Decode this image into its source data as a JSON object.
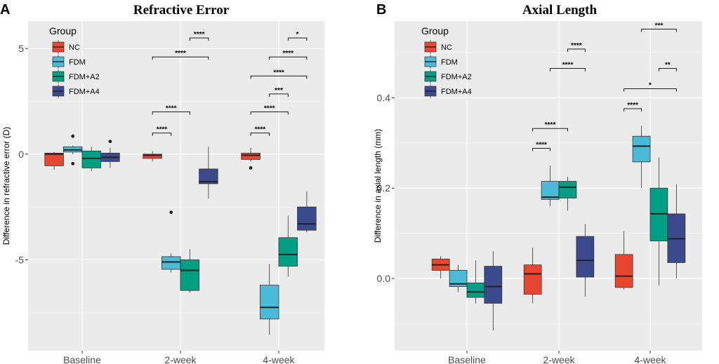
{
  "figure": {
    "letters": [
      "A",
      "B"
    ]
  },
  "legend": {
    "title": "Group"
  },
  "chart_data": [
    {
      "type": "box",
      "title": "Refractive Error",
      "ylabel": "Difference in refractive error (D)",
      "ylim": [
        -9.3,
        6.3
      ],
      "yticks": [
        -5,
        0,
        5
      ],
      "ytick_labels": [
        "-5",
        "0",
        "5"
      ],
      "categories": [
        "Baseline",
        "2-week",
        "4-week"
      ],
      "groups": [
        {
          "name": "NC",
          "color": "#E8462F"
        },
        {
          "name": "FDM",
          "color": "#4BBAD6"
        },
        {
          "name": "FDM+A2",
          "color": "#009F83"
        },
        {
          "name": "FDM+A4",
          "color": "#3A4A8C"
        }
      ],
      "boxes": [
        {
          "category": "Baseline",
          "group": "NC",
          "lower_whisker": -0.75,
          "q1": -0.55,
          "median": 0.0,
          "q3": 0.05,
          "upper_whisker": 0.1,
          "outliers": []
        },
        {
          "category": "Baseline",
          "group": "FDM",
          "lower_whisker": 0.0,
          "q1": 0.1,
          "median": 0.2,
          "q3": 0.35,
          "upper_whisker": 0.4,
          "outliers": [
            0.85,
            -0.45
          ]
        },
        {
          "category": "Baseline",
          "group": "FDM+A2",
          "lower_whisker": -0.8,
          "q1": -0.65,
          "median": -0.2,
          "q3": 0.15,
          "upper_whisker": 0.35,
          "outliers": []
        },
        {
          "category": "Baseline",
          "group": "FDM+A4",
          "lower_whisker": -0.65,
          "q1": -0.35,
          "median": -0.15,
          "q3": 0.05,
          "upper_whisker": 0.3,
          "outliers": [
            0.6
          ]
        },
        {
          "category": "2-week",
          "group": "NC",
          "lower_whisker": -0.35,
          "q1": -0.2,
          "median": -0.05,
          "q3": 0.0,
          "upper_whisker": 0.15,
          "outliers": []
        },
        {
          "category": "2-week",
          "group": "FDM",
          "lower_whisker": -5.6,
          "q1": -5.45,
          "median": -5.1,
          "q3": -4.85,
          "upper_whisker": -4.7,
          "outliers": [
            -2.75
          ]
        },
        {
          "category": "2-week",
          "group": "FDM+A2",
          "lower_whisker": -6.55,
          "q1": -6.45,
          "median": -5.5,
          "q3": -5.0,
          "upper_whisker": -4.5,
          "outliers": []
        },
        {
          "category": "2-week",
          "group": "FDM+A4",
          "lower_whisker": -2.1,
          "q1": -1.4,
          "median": -1.3,
          "q3": -0.7,
          "upper_whisker": 0.35,
          "outliers": []
        },
        {
          "category": "4-week",
          "group": "NC",
          "lower_whisker": -0.35,
          "q1": -0.25,
          "median": -0.05,
          "q3": 0.05,
          "upper_whisker": 0.3,
          "outliers": [
            -0.65
          ]
        },
        {
          "category": "4-week",
          "group": "FDM",
          "lower_whisker": -8.55,
          "q1": -7.8,
          "median": -7.25,
          "q3": -6.2,
          "upper_whisker": -5.2,
          "outliers": []
        },
        {
          "category": "4-week",
          "group": "FDM+A2",
          "lower_whisker": -5.8,
          "q1": -5.3,
          "median": -4.75,
          "q3": -3.95,
          "upper_whisker": -2.9,
          "outliers": []
        },
        {
          "category": "4-week",
          "group": "FDM+A4",
          "lower_whisker": -3.7,
          "q1": -3.6,
          "median": -3.3,
          "q3": -2.5,
          "upper_whisker": -1.75,
          "outliers": []
        }
      ],
      "significance": [
        {
          "category": "2-week",
          "from": "FDM+A2",
          "to": "FDM+A4",
          "y": 5.5,
          "label": "****"
        },
        {
          "category": "2-week",
          "from": "NC",
          "to": "FDM+A4",
          "y": 4.6,
          "label": "****"
        },
        {
          "category": "2-week",
          "from": "NC",
          "to": "FDM+A2",
          "y": 2.0,
          "label": "****"
        },
        {
          "category": "2-week",
          "from": "NC",
          "to": "FDM",
          "y": 1.0,
          "label": "****"
        },
        {
          "category": "4-week",
          "from": "FDM+A2",
          "to": "FDM+A4",
          "y": 5.5,
          "label": "*"
        },
        {
          "category": "4-week",
          "from": "FDM",
          "to": "FDM+A4",
          "y": 4.6,
          "label": "****"
        },
        {
          "category": "4-week",
          "from": "NC",
          "to": "FDM+A4",
          "y": 3.7,
          "label": "****"
        },
        {
          "category": "4-week",
          "from": "FDM",
          "to": "FDM+A2",
          "y": 2.85,
          "label": "***"
        },
        {
          "category": "4-week",
          "from": "NC",
          "to": "FDM+A2",
          "y": 2.0,
          "label": "****"
        },
        {
          "category": "4-week",
          "from": "NC",
          "to": "FDM",
          "y": 1.0,
          "label": "****"
        }
      ]
    },
    {
      "type": "box",
      "title": "Axial Length",
      "ylabel": "Difference in axial length (mm)",
      "ylim": [
        -0.16,
        0.57
      ],
      "yticks": [
        0.0,
        0.2,
        0.4
      ],
      "ytick_labels": [
        "0.0",
        "0.2",
        "0.4"
      ],
      "categories": [
        "Baseline",
        "2-week",
        "4-week"
      ],
      "groups": [
        {
          "name": "NC",
          "color": "#E8462F"
        },
        {
          "name": "FDM",
          "color": "#4BBAD6"
        },
        {
          "name": "FDM+A2",
          "color": "#009F83"
        },
        {
          "name": "FDM+A4",
          "color": "#3A4A8C"
        }
      ],
      "boxes": [
        {
          "category": "Baseline",
          "group": "NC",
          "lower_whisker": 0.0,
          "q1": 0.018,
          "median": 0.03,
          "q3": 0.043,
          "upper_whisker": 0.05,
          "outliers": []
        },
        {
          "category": "Baseline",
          "group": "FDM",
          "lower_whisker": -0.03,
          "q1": -0.018,
          "median": -0.012,
          "q3": 0.018,
          "upper_whisker": 0.03,
          "outliers": []
        },
        {
          "category": "Baseline",
          "group": "FDM+A2",
          "lower_whisker": -0.055,
          "q1": -0.042,
          "median": -0.03,
          "q3": -0.01,
          "upper_whisker": 0.04,
          "outliers": []
        },
        {
          "category": "Baseline",
          "group": "FDM+A4",
          "lower_whisker": -0.115,
          "q1": -0.055,
          "median": -0.018,
          "q3": 0.027,
          "upper_whisker": 0.06,
          "outliers": []
        },
        {
          "category": "2-week",
          "group": "NC",
          "lower_whisker": -0.055,
          "q1": -0.035,
          "median": 0.01,
          "q3": 0.03,
          "upper_whisker": 0.068,
          "outliers": []
        },
        {
          "category": "2-week",
          "group": "FDM",
          "lower_whisker": 0.16,
          "q1": 0.175,
          "median": 0.18,
          "q3": 0.215,
          "upper_whisker": 0.25,
          "outliers": []
        },
        {
          "category": "2-week",
          "group": "FDM+A2",
          "lower_whisker": 0.15,
          "q1": 0.178,
          "median": 0.202,
          "q3": 0.215,
          "upper_whisker": 0.225,
          "outliers": []
        },
        {
          "category": "2-week",
          "group": "FDM+A4",
          "lower_whisker": -0.04,
          "q1": 0.003,
          "median": 0.04,
          "q3": 0.093,
          "upper_whisker": 0.12,
          "outliers": []
        },
        {
          "category": "4-week",
          "group": "NC",
          "lower_whisker": -0.025,
          "q1": -0.02,
          "median": 0.005,
          "q3": 0.053,
          "upper_whisker": 0.105,
          "outliers": []
        },
        {
          "category": "4-week",
          "group": "FDM",
          "lower_whisker": 0.2,
          "q1": 0.258,
          "median": 0.293,
          "q3": 0.315,
          "upper_whisker": 0.338,
          "outliers": []
        },
        {
          "category": "4-week",
          "group": "FDM+A2",
          "lower_whisker": -0.015,
          "q1": 0.083,
          "median": 0.143,
          "q3": 0.2,
          "upper_whisker": 0.268,
          "outliers": []
        },
        {
          "category": "4-week",
          "group": "FDM+A4",
          "lower_whisker": 0.0,
          "q1": 0.035,
          "median": 0.088,
          "q3": 0.143,
          "upper_whisker": 0.208,
          "outliers": []
        }
      ],
      "significance": [
        {
          "category": "2-week",
          "from": "FDM+A2",
          "to": "FDM+A4",
          "y": 0.508,
          "label": "****"
        },
        {
          "category": "2-week",
          "from": "FDM",
          "to": "FDM+A4",
          "y": 0.465,
          "label": "****"
        },
        {
          "category": "2-week",
          "from": "NC",
          "to": "FDM+A2",
          "y": 0.332,
          "label": "****"
        },
        {
          "category": "2-week",
          "from": "NC",
          "to": "FDM",
          "y": 0.288,
          "label": "****"
        },
        {
          "category": "4-week",
          "from": "FDM",
          "to": "FDM+A4",
          "y": 0.552,
          "label": "***"
        },
        {
          "category": "4-week",
          "from": "FDM+A2",
          "to": "FDM+A4",
          "y": 0.465,
          "label": "**"
        },
        {
          "category": "4-week",
          "from": "NC",
          "to": "FDM+A4",
          "y": 0.42,
          "label": "*"
        },
        {
          "category": "4-week",
          "from": "NC",
          "to": "FDM",
          "y": 0.376,
          "label": "****"
        }
      ]
    }
  ]
}
